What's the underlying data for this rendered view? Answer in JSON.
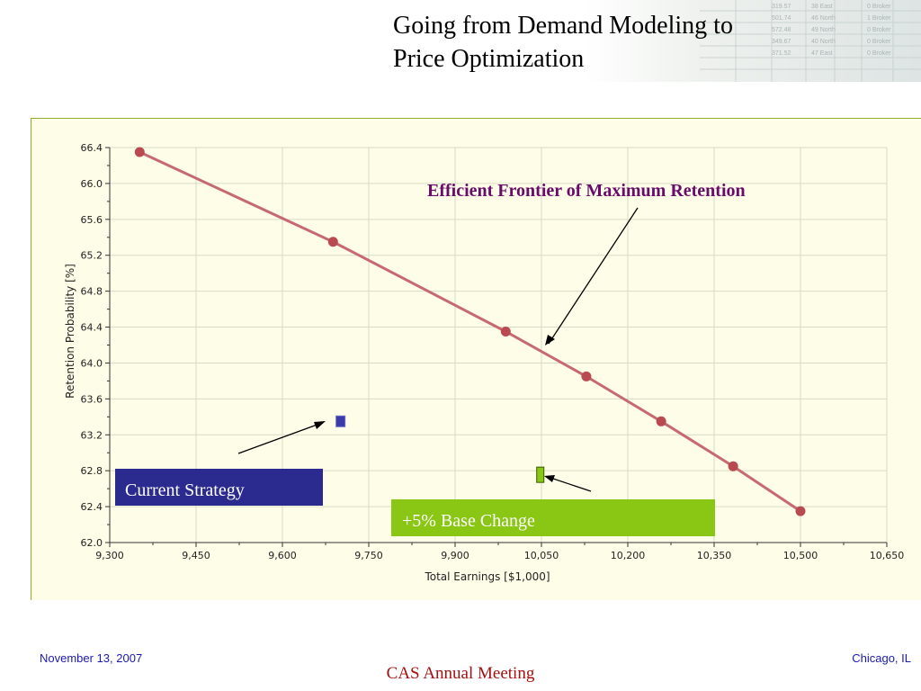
{
  "slide": {
    "title_line1": "Going from Demand Modeling to",
    "title_line2": "Price Optimization"
  },
  "footer": {
    "date": "November 13, 2007",
    "place": "Chicago, IL",
    "meeting": "CAS Annual Meeting"
  },
  "colors": {
    "frontier": "#c66a70",
    "frontier_marker": "#b84a50",
    "current_strategy_box": "#2b2b8f",
    "base_change_box": "#8ac614",
    "callout_title": "#6a0a6a"
  },
  "chart_data": {
    "type": "scatter",
    "xlabel": "Total Earnings [$1,000]",
    "ylabel": "Retention Probability [%]",
    "xlim": [
      9300,
      10650
    ],
    "ylim": [
      62.0,
      66.4
    ],
    "x_ticks": [
      "9,300",
      "9,450",
      "9,600",
      "9,750",
      "9,900",
      "10,050",
      "10,200",
      "10,350",
      "10,500",
      "10,650"
    ],
    "y_ticks": [
      "62.0",
      "62.4",
      "62.8",
      "63.2",
      "63.6",
      "64.0",
      "64.4",
      "64.8",
      "65.2",
      "65.6",
      "66.0",
      "66.4"
    ],
    "grid": true,
    "series": [
      {
        "name": "Efficient Frontier of Maximum Retention",
        "points": [
          [
            9352,
            66.35
          ],
          [
            9688,
            65.35
          ],
          [
            9988,
            64.35
          ],
          [
            10128,
            63.85
          ],
          [
            10258,
            63.35
          ],
          [
            10383,
            62.85
          ],
          [
            10500,
            62.35
          ]
        ]
      },
      {
        "name": "Current Strategy",
        "points": [
          [
            9701,
            63.35
          ]
        ]
      },
      {
        "name": "+5% Base Change",
        "points": [
          [
            10048,
            62.75
          ]
        ]
      }
    ],
    "annotations": [
      "Efficient Frontier of Maximum Retention",
      "Current Strategy",
      "+5% Base Change"
    ]
  }
}
